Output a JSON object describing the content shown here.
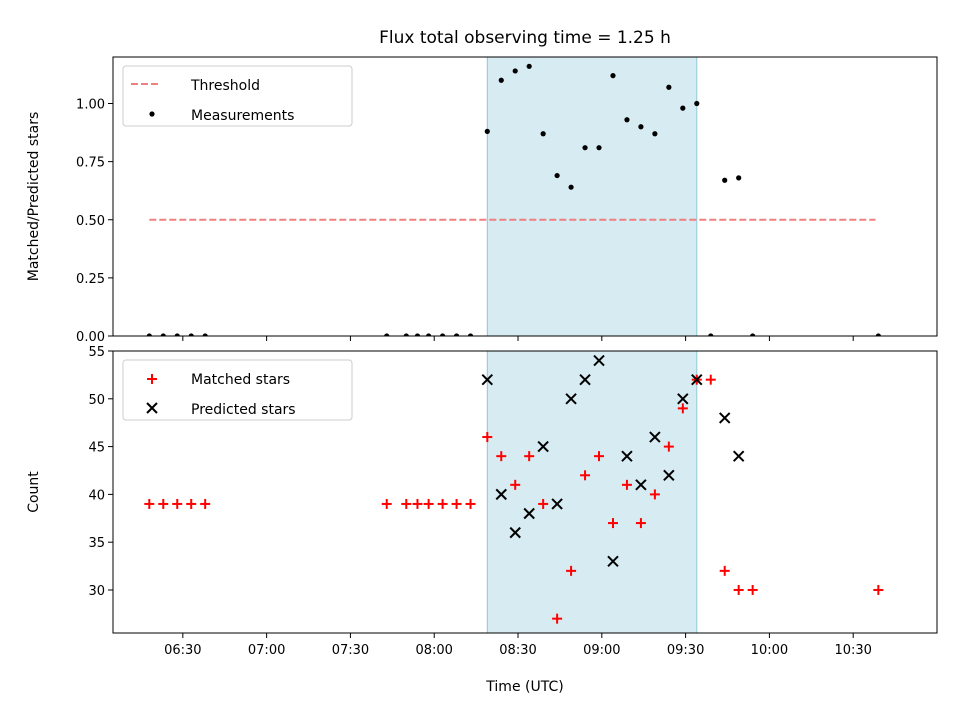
{
  "figure": {
    "title": "Flux total observing time = 1.25 h",
    "xlabel": "Time (UTC)"
  },
  "colors": {
    "threshold": "#f08080",
    "measurement": "#000000",
    "matched": "#ff0000",
    "predicted": "#000000",
    "span_fill": "#add8e6",
    "span_edge": "#8fc7d8"
  },
  "chart_data": [
    {
      "type": "scatter",
      "ylabel": "Matched/Predicted stars",
      "xlim": [
        "06:05",
        "11:00"
      ],
      "ylim": [
        0,
        1.2
      ],
      "x_ticks": [
        "06:30",
        "07:00",
        "07:30",
        "08:00",
        "08:30",
        "09:00",
        "09:30",
        "10:00",
        "10:30"
      ],
      "y_ticks": [
        "0.00",
        "0.25",
        "0.50",
        "0.75",
        "1.00"
      ],
      "highlight_span": [
        "08:19",
        "09:34"
      ],
      "legend": {
        "placement": "top-left",
        "entries": [
          "Threshold",
          "Measurements"
        ]
      },
      "threshold": {
        "name": "Threshold",
        "value": 0.5,
        "x": [
          "06:18",
          "10:38"
        ]
      },
      "measurements": {
        "name": "Measurements",
        "points": [
          [
            "06:18",
            0
          ],
          [
            "06:23",
            0
          ],
          [
            "06:28",
            0
          ],
          [
            "06:33",
            0
          ],
          [
            "06:38",
            0
          ],
          [
            "07:43",
            0
          ],
          [
            "07:50",
            0
          ],
          [
            "07:54",
            0
          ],
          [
            "07:58",
            0
          ],
          [
            "08:03",
            0
          ],
          [
            "08:08",
            0
          ],
          [
            "08:13",
            0
          ],
          [
            "08:19",
            0.88
          ],
          [
            "08:24",
            1.1
          ],
          [
            "08:29",
            1.14
          ],
          [
            "08:34",
            1.16
          ],
          [
            "08:39",
            0.87
          ],
          [
            "08:44",
            0.69
          ],
          [
            "08:49",
            0.64
          ],
          [
            "08:54",
            0.81
          ],
          [
            "08:59",
            0.81
          ],
          [
            "09:04",
            1.12
          ],
          [
            "09:09",
            0.93
          ],
          [
            "09:14",
            0.9
          ],
          [
            "09:19",
            0.87
          ],
          [
            "09:24",
            1.07
          ],
          [
            "09:29",
            0.98
          ],
          [
            "09:34",
            1.0
          ],
          [
            "09:39",
            0
          ],
          [
            "09:44",
            0.67
          ],
          [
            "09:49",
            0.68
          ],
          [
            "09:54",
            0
          ],
          [
            "10:39",
            0
          ]
        ]
      }
    },
    {
      "type": "scatter",
      "ylabel": "Count",
      "xlim": [
        "06:05",
        "11:00"
      ],
      "ylim": [
        25.5,
        55
      ],
      "x_ticks": [
        "06:30",
        "07:00",
        "07:30",
        "08:00",
        "08:30",
        "09:00",
        "09:30",
        "10:00",
        "10:30"
      ],
      "y_ticks": [
        "30",
        "35",
        "40",
        "45",
        "50",
        "55"
      ],
      "highlight_span": [
        "08:19",
        "09:34"
      ],
      "legend": {
        "placement": "top-left",
        "entries": [
          "Matched stars",
          "Predicted stars"
        ]
      },
      "matched": {
        "name": "Matched stars",
        "points": [
          [
            "06:18",
            39
          ],
          [
            "06:23",
            39
          ],
          [
            "06:28",
            39
          ],
          [
            "06:33",
            39
          ],
          [
            "06:38",
            39
          ],
          [
            "07:43",
            39
          ],
          [
            "07:50",
            39
          ],
          [
            "07:54",
            39
          ],
          [
            "07:58",
            39
          ],
          [
            "08:03",
            39
          ],
          [
            "08:08",
            39
          ],
          [
            "08:13",
            39
          ],
          [
            "08:19",
            46
          ],
          [
            "08:24",
            44
          ],
          [
            "08:29",
            41
          ],
          [
            "08:34",
            44
          ],
          [
            "08:39",
            39
          ],
          [
            "08:44",
            27
          ],
          [
            "08:49",
            32
          ],
          [
            "08:54",
            42
          ],
          [
            "08:59",
            44
          ],
          [
            "09:04",
            37
          ],
          [
            "09:09",
            41
          ],
          [
            "09:14",
            37
          ],
          [
            "09:19",
            40
          ],
          [
            "09:24",
            45
          ],
          [
            "09:29",
            49
          ],
          [
            "09:34",
            52
          ],
          [
            "09:39",
            52
          ],
          [
            "09:44",
            32
          ],
          [
            "09:49",
            30
          ],
          [
            "09:54",
            30
          ],
          [
            "10:39",
            30
          ]
        ]
      },
      "predicted": {
        "name": "Predicted stars",
        "points": [
          [
            "08:19",
            52
          ],
          [
            "08:24",
            40
          ],
          [
            "08:29",
            36
          ],
          [
            "08:34",
            38
          ],
          [
            "08:39",
            45
          ],
          [
            "08:44",
            39
          ],
          [
            "08:49",
            50
          ],
          [
            "08:54",
            52
          ],
          [
            "08:59",
            54
          ],
          [
            "09:04",
            33
          ],
          [
            "09:09",
            44
          ],
          [
            "09:14",
            41
          ],
          [
            "09:19",
            46
          ],
          [
            "09:24",
            42
          ],
          [
            "09:29",
            50
          ],
          [
            "09:34",
            52
          ],
          [
            "09:44",
            48
          ],
          [
            "09:49",
            44
          ]
        ]
      }
    }
  ]
}
